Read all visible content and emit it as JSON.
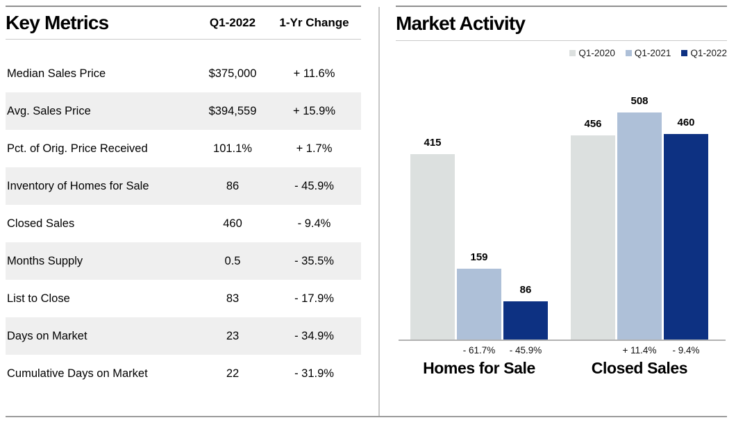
{
  "left_panel": {
    "title": "Key Metrics",
    "col_headers": {
      "period": "Q1-2022",
      "change": "1-Yr Change"
    },
    "rows": [
      {
        "label": "Median Sales Price",
        "value": "$375,000",
        "change": "+ 11.6%"
      },
      {
        "label": "Avg. Sales Price",
        "value": "$394,559",
        "change": "+ 15.9%"
      },
      {
        "label": "Pct. of Orig. Price Received",
        "value": "101.1%",
        "change": "+ 1.7%"
      },
      {
        "label": "Inventory of Homes for Sale",
        "value": "86",
        "change": "- 45.9%"
      },
      {
        "label": "Closed Sales",
        "value": "460",
        "change": "- 9.4%"
      },
      {
        "label": "Months Supply",
        "value": "0.5",
        "change": "- 35.5%"
      },
      {
        "label": "List to Close",
        "value": "83",
        "change": "- 17.9%"
      },
      {
        "label": "Days on Market",
        "value": "23",
        "change": "- 34.9%"
      },
      {
        "label": "Cumulative Days on Market",
        "value": "22",
        "change": "- 31.9%"
      }
    ]
  },
  "right_panel": {
    "title": "Market Activity"
  },
  "chart_data": {
    "type": "bar",
    "title": "Market Activity",
    "categories": [
      "Homes for Sale",
      "Closed Sales"
    ],
    "series": [
      {
        "name": "Q1-2020",
        "color": "#dce0df",
        "values": [
          415,
          456
        ],
        "pct_labels": [
          "",
          ""
        ]
      },
      {
        "name": "Q1-2021",
        "color": "#aec0d8",
        "values": [
          159,
          508
        ],
        "pct_labels": [
          "- 61.7%",
          "+ 11.4%"
        ]
      },
      {
        "name": "Q1-2022",
        "color": "#0d3182",
        "values": [
          86,
          460
        ],
        "pct_labels": [
          "- 45.9%",
          "- 9.4%"
        ]
      }
    ],
    "ylim": [
      0,
      520
    ],
    "grid": false,
    "legend_position": "top-right",
    "value_labels": true
  },
  "colors": {
    "accent_navy": "#0d3182",
    "light_blue": "#aec0d8",
    "light_gray": "#dce0df",
    "row_alt": "#efefef",
    "rule_dark": "#8f8f8f",
    "rule_light": "#c9c9c9"
  }
}
